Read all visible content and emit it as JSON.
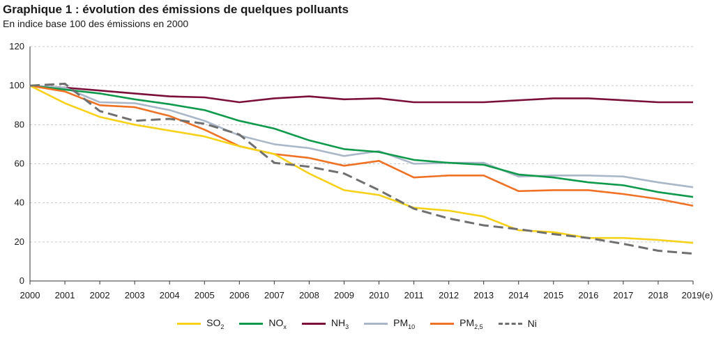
{
  "chart_data": {
    "type": "line",
    "title": "Graphique 1 : évolution des émissions de quelques polluants",
    "subtitle": "En indice base 100 des émissions en 2000",
    "xlabel": "",
    "ylabel": "",
    "x": [
      "2000",
      "2001",
      "2002",
      "2003",
      "2004",
      "2005",
      "2006",
      "2007",
      "2008",
      "2009",
      "2010",
      "2011",
      "2012",
      "2013",
      "2014",
      "2015",
      "2016",
      "2017",
      "2018",
      "2019(e)"
    ],
    "ylim": [
      0,
      120
    ],
    "yticks": [
      0,
      20,
      40,
      60,
      80,
      100,
      120
    ],
    "grid": "horizontal-dashed",
    "legend_position": "bottom",
    "series": [
      {
        "name": "SO2",
        "label_main": "SO",
        "label_sub": "2",
        "color": "#f7d117",
        "dash": false,
        "values": [
          100,
          91,
          84,
          80,
          77,
          74,
          69,
          65,
          55,
          46.5,
          44,
          37.5,
          36,
          33,
          26,
          25,
          22,
          22,
          21,
          19.5
        ]
      },
      {
        "name": "NOx",
        "label_main": "NO",
        "label_sub": "x",
        "color": "#0e9a4a",
        "dash": false,
        "values": [
          100,
          98,
          96,
          93,
          90.5,
          87.5,
          82,
          78,
          72,
          67.5,
          66,
          62,
          60.5,
          59.5,
          54.5,
          53,
          50.5,
          49,
          45.5,
          43
        ]
      },
      {
        "name": "NH3",
        "label_main": "NH",
        "label_sub": "3",
        "color": "#7b0f3a",
        "dash": false,
        "values": [
          100,
          99,
          97.5,
          96,
          94.5,
          94,
          91.5,
          93.5,
          94.5,
          93,
          93.5,
          91.5,
          91.5,
          91.5,
          92.5,
          93.5,
          93.5,
          92.5,
          91.5,
          91.5
        ]
      },
      {
        "name": "PM10",
        "label_main": "PM",
        "label_sub": "10",
        "color": "#a9b7c8",
        "dash": false,
        "values": [
          100,
          99,
          91.5,
          91,
          87.5,
          82,
          74.5,
          70,
          68,
          64,
          66.5,
          60,
          60.5,
          60.5,
          53.5,
          54,
          54,
          53.5,
          50.5,
          48
        ]
      },
      {
        "name": "PM2,5",
        "label_main": "PM",
        "label_sub": "2,5",
        "color": "#f07024",
        "dash": false,
        "values": [
          100,
          97,
          90,
          89,
          84.5,
          77.5,
          69,
          65,
          63,
          59,
          61.5,
          53,
          54,
          54,
          46,
          46.5,
          46.5,
          44.5,
          42,
          38.5
        ]
      },
      {
        "name": "Ni",
        "label_main": "Ni",
        "label_sub": "",
        "color": "#6f6f6f",
        "dash": true,
        "values": [
          100,
          101,
          87,
          82,
          83,
          80.5,
          75,
          60.5,
          58.5,
          55,
          46.5,
          37,
          32,
          28.5,
          26.5,
          24,
          22,
          19,
          15.5,
          14
        ]
      }
    ]
  }
}
